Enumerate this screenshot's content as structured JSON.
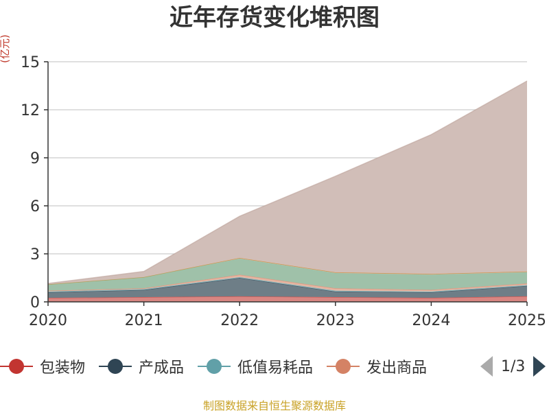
{
  "title": "近年存货变化堆积图",
  "unit": "(亿元)",
  "footer": "制图数据来自恒生聚源数据库",
  "pager": {
    "text": "1/3"
  },
  "legend": [
    {
      "name": "包装物",
      "color": "#c23531"
    },
    {
      "name": "产成品",
      "color": "#2f4554"
    },
    {
      "name": "低值易耗品",
      "color": "#61a0a8"
    },
    {
      "name": "发出商品",
      "color": "#d48265"
    }
  ],
  "chart_data": {
    "type": "area",
    "stacked": true,
    "x": [
      "2020",
      "2021",
      "2022",
      "2023",
      "2024",
      "2025"
    ],
    "ylim": [
      0,
      15
    ],
    "yticks": [
      0,
      3,
      6,
      9,
      12,
      15
    ],
    "ylabel": "(亿元)",
    "grid": true,
    "series": [
      {
        "name": "包装物",
        "color": "#c23531",
        "fill": "#d98682",
        "values": [
          0.25,
          0.3,
          0.35,
          0.3,
          0.25,
          0.35
        ]
      },
      {
        "name": "产成品",
        "color": "#2f4554",
        "fill": "#6e7e87",
        "values": [
          0.35,
          0.45,
          1.15,
          0.35,
          0.35,
          0.65
        ]
      },
      {
        "name": "低值易耗品",
        "color": "#61a0a8",
        "fill": "#9ec4c9",
        "values": [
          0.05,
          0.05,
          0.05,
          0.05,
          0.05,
          0.05
        ]
      },
      {
        "name": "发出商品",
        "color": "#d48265",
        "fill": "#e5b5a2",
        "values": [
          0.05,
          0.05,
          0.15,
          0.15,
          0.1,
          0.1
        ]
      },
      {
        "color": "#91c7ae",
        "fill": "#9fc1a9",
        "values": [
          0.4,
          0.7,
          1.0,
          0.95,
          0.95,
          0.7
        ]
      },
      {
        "color": "#ca8622",
        "fill": "#d4b29a",
        "values": [
          0.0,
          0.0,
          0.05,
          0.05,
          0.05,
          0.05
        ]
      },
      {
        "color": "#bda29a",
        "fill": "#d1beb8",
        "values": [
          0.05,
          0.35,
          2.6,
          6.0,
          8.7,
          11.9
        ]
      }
    ]
  }
}
